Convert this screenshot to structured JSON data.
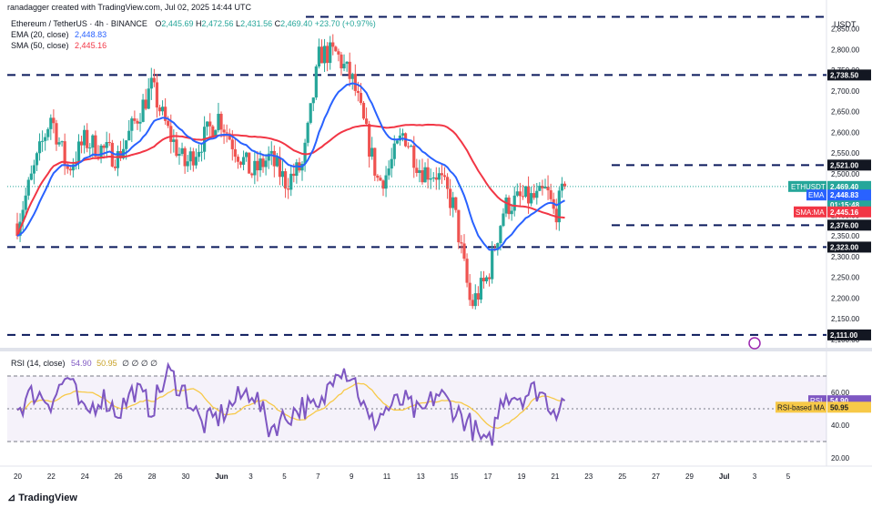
{
  "header": {
    "credit": "ranadagger created with TradingView.com, Jul 02, 2025 14:44 UTC",
    "symbol_line": "Ethereum / TetherUS · 4h · BINANCE",
    "ohlc": {
      "o_label": "O",
      "o": "2,445.69",
      "h_label": "H",
      "h": "2,472.56",
      "l_label": "L",
      "l": "2,431.56",
      "c_label": "C",
      "c": "2,469.40",
      "change": "+23.70 (+0.97%)"
    },
    "ema_label": "EMA (20, close)",
    "ema_value": "2,448.83",
    "sma_label": "SMA (50, close)",
    "sma_value": "2,445.16",
    "rsi_label": "RSI (14, close)",
    "rsi_value": "54.90",
    "rsi_ma_value": "50.95",
    "rsi_extra": "∅ ∅ ∅ ∅"
  },
  "axis": {
    "currency": "USDT"
  },
  "tags": {
    "ethusdt": "ETHUSDT",
    "price": "2,469.40",
    "pct": "+2.73%",
    "countdown": "01:15:48",
    "ema_tag": "EMA",
    "ema_price": "2,448.83",
    "sma_tag": "SMA:MA",
    "sma_price": "2,445.16",
    "rsi_tag": "RSI",
    "rsi_value": "54.90",
    "rsi_ma_tag": "RSI-based MA",
    "rsi_ma_value": "50.95"
  },
  "footer": {
    "brand": "TradingView"
  },
  "colors": {
    "up": "#26a69a",
    "down": "#ef5350",
    "ema": "#2962ff",
    "sma": "#f23645",
    "rsi": "#7e57c2",
    "rsi_ma": "#f7c948",
    "level": "#0b1a5c"
  },
  "chart_data": {
    "type": "candlestick",
    "title": "Ethereum / TetherUS · 4h · BINANCE",
    "ylabel": "USDT",
    "ylim": [
      2080,
      2880
    ],
    "y_ticks": [
      2100,
      2150,
      2200,
      2250,
      2300,
      2350,
      2400,
      2450,
      2500,
      2550,
      2600,
      2650,
      2700,
      2750,
      2800,
      2850
    ],
    "y_tick_labels": [
      "2,100.00",
      "2,150.00",
      "2,200.00",
      "2,250.00",
      "2,300.00",
      "2,350.00",
      "2,400.00",
      "2,450.00",
      "2,500.00",
      "2,550.00",
      "2,600.00",
      "2,650.00",
      "2,700.00",
      "2,750.00",
      "2,800.00",
      "2,850.00"
    ],
    "x_tick_labels": [
      "20",
      "22",
      "24",
      "26",
      "28",
      "30",
      "Jun",
      "3",
      "5",
      "7",
      "9",
      "11",
      "13",
      "15",
      "17",
      "19",
      "21",
      "23",
      "25",
      "27",
      "29",
      "Jul",
      "3",
      "5"
    ],
    "horizontal_levels": [
      {
        "value": 2879,
        "label": ""
      },
      {
        "value": 2738.5,
        "label": "2,738.50"
      },
      {
        "value": 2521,
        "label": "2,521.00"
      },
      {
        "value": 2376,
        "label": "2,376.00"
      },
      {
        "value": 2323,
        "label": "2,323.00"
      },
      {
        "value": 2111,
        "label": "2,111.00"
      }
    ],
    "price_anchors": {
      "label": "approximate closing path (day index from May 19, price)",
      "x": [
        0,
        2,
        3,
        4,
        6,
        8,
        9,
        10,
        11,
        12,
        13,
        14,
        15,
        16,
        17,
        18,
        19,
        20,
        21,
        21.5,
        22,
        23,
        24,
        25,
        26,
        27,
        28,
        29,
        30,
        31,
        31.5,
        32,
        32.6
      ],
      "y": [
        2380,
        2640,
        2510,
        2580,
        2540,
        2710,
        2600,
        2520,
        2580,
        2640,
        2560,
        2500,
        2540,
        2480,
        2520,
        2790,
        2790,
        2720,
        2560,
        2480,
        2500,
        2600,
        2510,
        2500,
        2420,
        2180,
        2250,
        2420,
        2440,
        2440,
        2460,
        2400,
        2469
      ]
    },
    "series": [
      {
        "name": "EMA (20, close)",
        "last": 2448.83
      },
      {
        "name": "SMA (50, close)",
        "last": 2445.16
      }
    ],
    "rsi": {
      "ylim": [
        15,
        85
      ],
      "ticks": [
        20,
        40,
        60
      ],
      "tick_labels": [
        "20.00",
        "40.00",
        "60.00"
      ],
      "band": [
        30,
        70
      ],
      "midline": 50,
      "anchors_x": [
        0,
        1,
        2,
        3,
        4,
        5,
        6,
        7,
        8,
        9,
        10,
        11,
        12,
        13,
        14,
        15,
        16,
        17,
        18,
        19,
        20,
        21,
        22,
        23,
        24,
        25,
        26,
        27,
        28,
        29,
        30,
        31,
        32,
        32.6
      ],
      "anchors_y": [
        50,
        60,
        55,
        70,
        45,
        58,
        48,
        62,
        50,
        72,
        60,
        40,
        45,
        55,
        62,
        38,
        45,
        52,
        48,
        78,
        70,
        40,
        50,
        55,
        45,
        60,
        50,
        40,
        25,
        60,
        58,
        62,
        50,
        54.9
      ],
      "last": 54.9,
      "ma_last": 50.95
    }
  }
}
